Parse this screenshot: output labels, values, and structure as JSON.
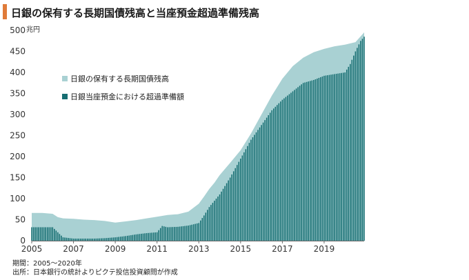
{
  "title": "日銀の保有する長期国債残高と当座預金超過準備残高",
  "notes": {
    "period": "期間：2005〜2020年",
    "source": "出所：日本銀行の統計よりピクテ投信投資顧問が作成"
  },
  "colors": {
    "accent": "#e07b39",
    "area": "#a9d1d3",
    "bar": "#166e72"
  },
  "chart_data": {
    "type": "bar",
    "unit": "兆円",
    "ylim": [
      0,
      500
    ],
    "yticks": [
      0,
      50,
      100,
      150,
      200,
      250,
      300,
      350,
      400,
      450,
      500
    ],
    "xlim": [
      2005,
      2020.917
    ],
    "xticks": [
      "2005",
      "2007",
      "2009",
      "2011",
      "2013",
      "2015",
      "2017",
      "2019"
    ],
    "legend_position": "upper-left",
    "series": [
      {
        "name": "日銀の保有する長期国債残高",
        "kind": "area",
        "x": [
          2005.0,
          2005.5,
          2006.0,
          2006.25,
          2006.5,
          2007.0,
          2007.5,
          2008.0,
          2008.5,
          2009.0,
          2009.5,
          2010.0,
          2010.5,
          2011.0,
          2011.5,
          2012.0,
          2012.5,
          2013.0,
          2013.25,
          2013.5,
          2013.75,
          2014.0,
          2014.5,
          2015.0,
          2015.5,
          2016.0,
          2016.5,
          2017.0,
          2017.5,
          2018.0,
          2018.5,
          2019.0,
          2019.5,
          2020.0,
          2020.5,
          2020.917
        ],
        "values": [
          66,
          66,
          64,
          56,
          53,
          52,
          50,
          49,
          47,
          43,
          46,
          49,
          53,
          57,
          61,
          63,
          69,
          88,
          105,
          123,
          138,
          156,
          185,
          215,
          255,
          300,
          345,
          385,
          415,
          435,
          448,
          456,
          462,
          466,
          472,
          495
        ]
      },
      {
        "name": "日銀当座預金における超過準備額",
        "kind": "bar",
        "x": [
          2005.0,
          2006.0,
          2006.25,
          2006.5,
          2007.0,
          2008.0,
          2008.5,
          2009.0,
          2009.5,
          2010.0,
          2010.5,
          2011.0,
          2011.25,
          2011.5,
          2012.0,
          2012.5,
          2013.0,
          2013.25,
          2013.5,
          2014.0,
          2014.5,
          2015.0,
          2015.5,
          2016.0,
          2016.5,
          2017.0,
          2017.5,
          2018.0,
          2018.5,
          2019.0,
          2019.5,
          2020.0,
          2020.25,
          2020.5,
          2020.75,
          2020.917
        ],
        "values": [
          32,
          32,
          20,
          8,
          5,
          5,
          6,
          8,
          11,
          15,
          18,
          20,
          35,
          32,
          33,
          36,
          42,
          60,
          80,
          110,
          150,
          195,
          240,
          275,
          310,
          335,
          355,
          375,
          382,
          392,
          396,
          400,
          420,
          450,
          475,
          485
        ]
      }
    ]
  }
}
